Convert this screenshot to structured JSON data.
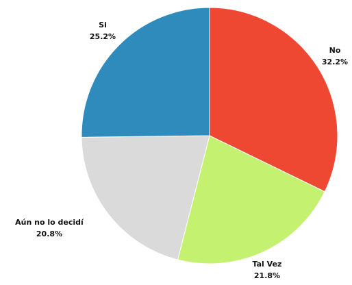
{
  "chart_data": {
    "type": "pie",
    "title": "",
    "slices": [
      {
        "label": "No",
        "value": 32.2,
        "percent_label": "32.2%",
        "color": "#ee4832"
      },
      {
        "label": "Tal Vez",
        "value": 21.8,
        "percent_label": "21.8%",
        "color": "#c4f170"
      },
      {
        "label": "Aún no lo decidí",
        "value": 20.8,
        "percent_label": "20.8%",
        "color": "#dadada"
      },
      {
        "label": "Si",
        "value": 25.2,
        "percent_label": "25.2%",
        "color": "#2f8bbc"
      }
    ],
    "start": "12 o'clock",
    "direction": "clockwise",
    "legend": "none"
  }
}
